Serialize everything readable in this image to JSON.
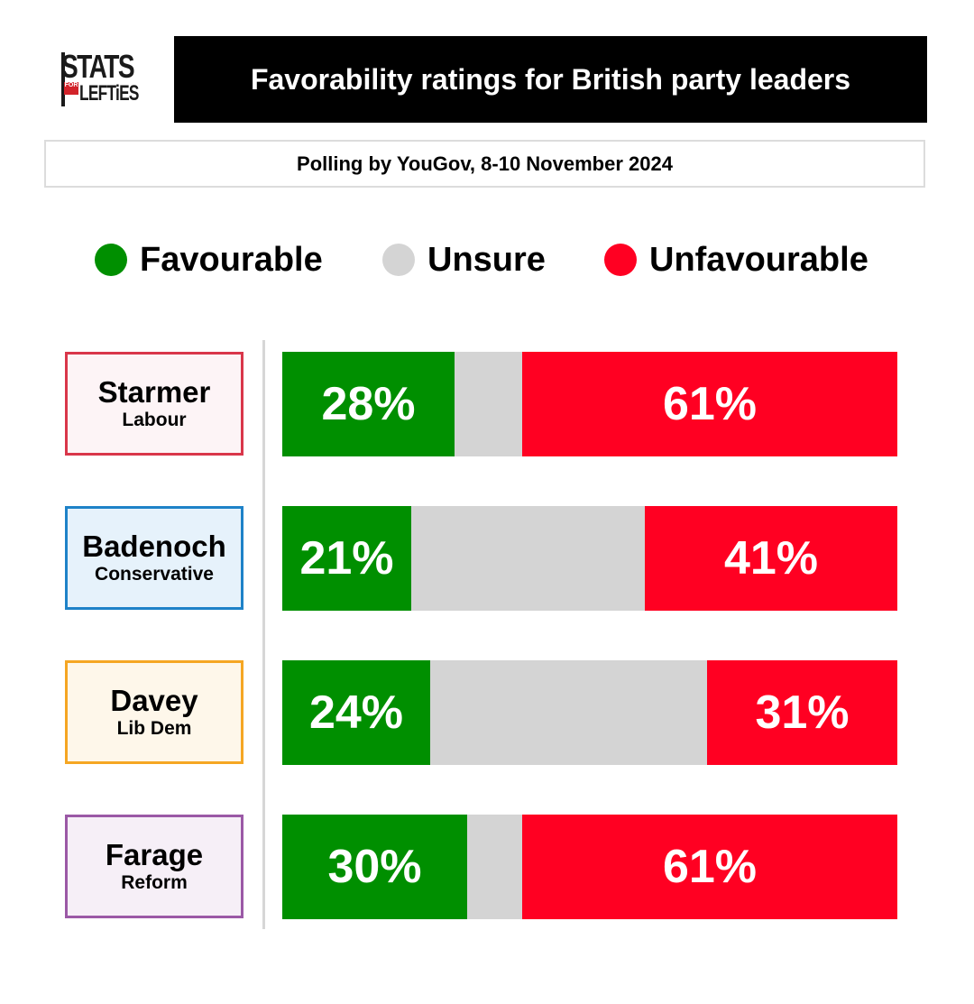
{
  "logo": {
    "top": "STATS",
    "small": "FOR",
    "bottom": "LEFTiES"
  },
  "header": {
    "title": "Favorability ratings for British party leaders",
    "subtitle": "Polling by YouGov, 8-10 November 2024"
  },
  "colors": {
    "favourable": "#008f00",
    "unsure": "#d4d4d4",
    "unfavourable": "#ff0022"
  },
  "chart_data": {
    "type": "bar",
    "orientation": "horizontal-stacked",
    "title": "Favorability ratings for British party leaders",
    "subtitle": "Polling by YouGov, 8-10 November 2024",
    "legend": [
      {
        "key": "favourable",
        "label": "Favourable"
      },
      {
        "key": "unsure",
        "label": "Unsure"
      },
      {
        "key": "unfavourable",
        "label": "Unfavourable"
      }
    ],
    "legend_position": "top",
    "categories": [
      {
        "leader": "Starmer",
        "party": "Labour",
        "border": "#d9364a",
        "fill": "#fdf4f6"
      },
      {
        "leader": "Badenoch",
        "party": "Conservative",
        "border": "#1e82c8",
        "fill": "#e6f2fb"
      },
      {
        "leader": "Davey",
        "party": "Lib Dem",
        "border": "#f5a623",
        "fill": "#fef7ea"
      },
      {
        "leader": "Farage",
        "party": "Reform",
        "border": "#9b59a6",
        "fill": "#f6eff7"
      }
    ],
    "series": [
      {
        "name": "Favourable",
        "key": "favourable",
        "values": [
          28,
          21,
          24,
          30
        ]
      },
      {
        "name": "Unsure",
        "key": "unsure",
        "values": [
          11,
          38,
          45,
          9
        ]
      },
      {
        "name": "Unfavourable",
        "key": "unfavourable",
        "values": [
          61,
          41,
          31,
          61
        ]
      }
    ],
    "labels": {
      "favourable": [
        "28%",
        "21%",
        "24%",
        "30%"
      ],
      "unfavourable": [
        "61%",
        "41%",
        "31%",
        "61%"
      ]
    },
    "xlim": [
      0,
      100
    ]
  }
}
